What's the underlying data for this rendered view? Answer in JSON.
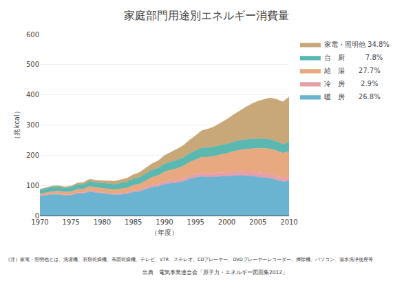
{
  "chart_data": {
    "type": "area",
    "stacked": true,
    "title": "家庭部門用途別エネルギー消費量",
    "ylabel": "（兆kcal）",
    "xlabel": "（年度）",
    "x": [
      1970,
      1971,
      1972,
      1973,
      1974,
      1975,
      1976,
      1977,
      1978,
      1979,
      1980,
      1981,
      1982,
      1983,
      1984,
      1985,
      1986,
      1987,
      1988,
      1989,
      1990,
      1991,
      1992,
      1993,
      1994,
      1995,
      1996,
      1997,
      1998,
      1999,
      2000,
      2001,
      2002,
      2003,
      2004,
      2005,
      2006,
      2007,
      2008,
      2009,
      2010
    ],
    "series": [
      {
        "name": "暖　房　　26.8%",
        "color": "#6ab4d2",
        "values": [
          65,
          68,
          70,
          70,
          67,
          68,
          73,
          73,
          80,
          76,
          74,
          71,
          69,
          70,
          72,
          78,
          80,
          87,
          94,
          97,
          104,
          107,
          109,
          113,
          122,
          126,
          130,
          128,
          128,
          130,
          130,
          132,
          133,
          132,
          132,
          128,
          126,
          124,
          118,
          112,
          116
        ]
      },
      {
        "name": "冷　房　　 2.9%",
        "color": "#e8a0a8",
        "values": [
          2,
          2,
          2,
          2,
          2,
          2,
          3,
          3,
          3,
          3,
          3,
          3,
          3,
          4,
          4,
          5,
          5,
          6,
          7,
          8,
          9,
          9,
          9,
          10,
          11,
          11,
          12,
          12,
          13,
          13,
          14,
          14,
          14,
          14,
          14,
          15,
          15,
          14,
          14,
          13,
          13
        ]
      },
      {
        "name": "給　湯　　27.7%",
        "color": "#e8a880",
        "values": [
          5,
          6,
          8,
          9,
          9,
          9,
          11,
          12,
          14,
          14,
          14,
          14,
          14,
          15,
          16,
          18,
          20,
          23,
          26,
          28,
          32,
          35,
          38,
          41,
          44,
          48,
          52,
          54,
          56,
          59,
          62,
          66,
          70,
          74,
          76,
          80,
          82,
          83,
          83,
          82,
          84
        ]
      },
      {
        "name": "台　厨　　　7.8%",
        "color": "#5ab8b0",
        "values": [
          13,
          14,
          15,
          15,
          14,
          15,
          16,
          16,
          17,
          17,
          17,
          18,
          18,
          19,
          20,
          21,
          22,
          23,
          24,
          25,
          26,
          27,
          28,
          28,
          29,
          30,
          31,
          31,
          31,
          31,
          31,
          31,
          32,
          32,
          32,
          32,
          32,
          31,
          30,
          29,
          30
        ]
      },
      {
        "name": "家電・照明他 34.8%",
        "color": "#c8a878",
        "values": [
          2,
          2,
          3,
          3,
          3,
          4,
          5,
          6,
          7,
          7,
          8,
          9,
          10,
          11,
          12,
          14,
          16,
          19,
          21,
          24,
          28,
          32,
          36,
          40,
          44,
          50,
          57,
          62,
          67,
          74,
          82,
          90,
          98,
          107,
          116,
          124,
          130,
          138,
          140,
          141,
          150
        ]
      }
    ],
    "xlim": [
      1970,
      2010
    ],
    "xticks": [
      1970,
      1975,
      1980,
      1985,
      1990,
      1995,
      2000,
      2005,
      2010
    ],
    "ylim": [
      0,
      600
    ],
    "yticks": [
      0,
      100,
      200,
      300,
      400,
      500,
      600
    ],
    "grid": true,
    "annotations": [
      "（注）家電・照明他とは、洗濯機、衣類乾燥機、布団乾燥機、テレビ、VTR、ステレオ、CDプレーヤー、DVDプレーヤーレコーダー、掃除機、パソコン、温水洗浄便座等",
      "出典　電気事業連合会「原子力・エネルギー図面集2012」"
    ]
  }
}
